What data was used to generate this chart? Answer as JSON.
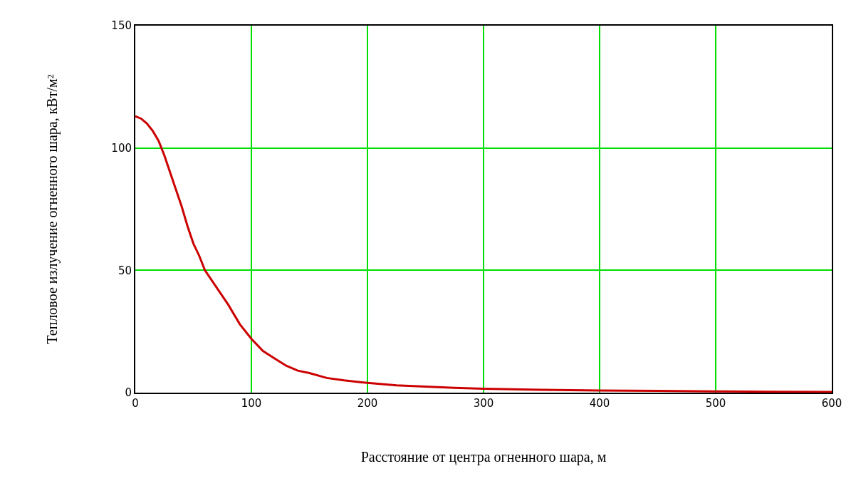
{
  "chart_data": {
    "type": "line",
    "xlabel": "Расстояние от центра огненного шара, м",
    "ylabel": "Тепловое излучение огненного шара, кВт/м²",
    "x": [
      0,
      5,
      10,
      15,
      20,
      25,
      30,
      35,
      40,
      45,
      50,
      55,
      60,
      70,
      80,
      90,
      100,
      110,
      120,
      130,
      140,
      150,
      165,
      180,
      200,
      225,
      250,
      275,
      300,
      350,
      400,
      450,
      500,
      550,
      600
    ],
    "series": [
      {
        "color": "#cc0000",
        "values": [
          113,
          112,
          110,
          107,
          103,
          97,
          90,
          83,
          76,
          68,
          61,
          56,
          50,
          43,
          36,
          28,
          22,
          17,
          14,
          11,
          9,
          8,
          6,
          5,
          4,
          3,
          2.5,
          2,
          1.6,
          1.2,
          0.9,
          0.7,
          0.5,
          0.4,
          0.3
        ]
      }
    ],
    "xlim": [
      0,
      600
    ],
    "xticks": [
      0,
      100,
      200,
      300,
      400,
      500,
      600
    ],
    "ylim": [
      0,
      150
    ],
    "yticks": [
      0,
      50,
      100,
      150
    ],
    "grid": true,
    "line_style": "solid",
    "marker": "none"
  }
}
